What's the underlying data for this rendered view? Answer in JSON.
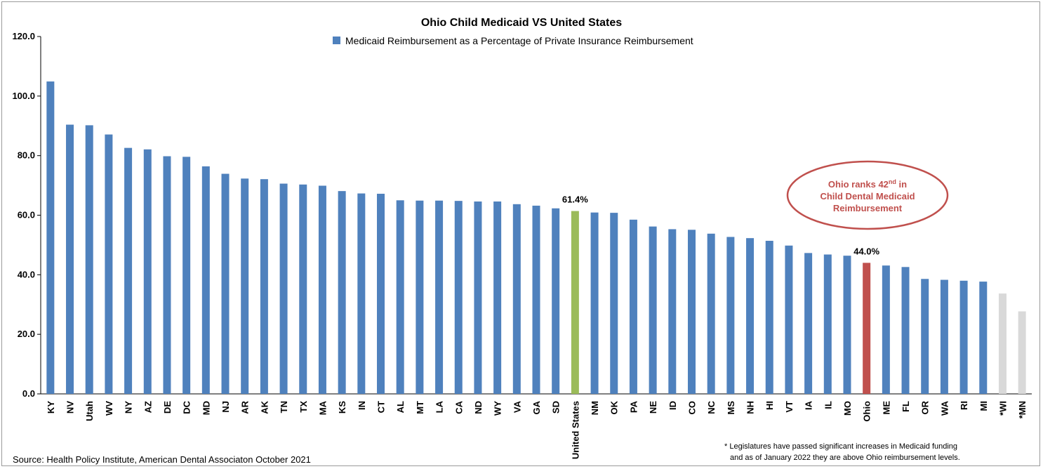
{
  "chart_data": {
    "type": "bar",
    "title": "Ohio Child Medicaid VS United States",
    "legend": "Medicaid Reimbursement as a Percentage of Private Insurance Reimbursement",
    "legend_position": "top-center",
    "ylim": [
      0,
      120
    ],
    "yticks": [
      "0.0",
      "20.0",
      "40.0",
      "60.0",
      "80.0",
      "100.0",
      "120.0"
    ],
    "grid": false,
    "categories": [
      "KY",
      "NV",
      "Utah",
      "WV",
      "NY",
      "AZ",
      "DE",
      "DC",
      "MD",
      "NJ",
      "AR",
      "AK",
      "TN",
      "TX",
      "MA",
      "KS",
      "IN",
      "CT",
      "AL",
      "MT",
      "LA",
      "CA",
      "ND",
      "WY",
      "VA",
      "GA",
      "SD",
      "United States",
      "NM",
      "OK",
      "PA",
      "NE",
      "ID",
      "CO",
      "NC",
      "MS",
      "NH",
      "HI",
      "VT",
      "IA",
      "IL",
      "MO",
      "Ohio",
      "ME",
      "FL",
      "OR",
      "WA",
      "RI",
      "MI",
      "*WI",
      "*MN"
    ],
    "values": [
      104.9,
      90.4,
      90.2,
      87.1,
      82.6,
      82.1,
      79.8,
      79.6,
      76.4,
      73.9,
      72.3,
      72.1,
      70.6,
      70.3,
      69.9,
      68.1,
      67.3,
      67.2,
      65.0,
      64.9,
      64.9,
      64.8,
      64.6,
      64.6,
      63.7,
      63.2,
      62.3,
      61.4,
      60.9,
      60.8,
      58.5,
      56.2,
      55.3,
      55.1,
      53.8,
      52.7,
      52.3,
      51.4,
      49.8,
      47.3,
      46.8,
      46.4,
      44.0,
      43.1,
      42.6,
      38.6,
      38.3,
      38.0,
      37.7,
      33.7,
      27.7
    ],
    "colors": {
      "default": "#4f81bd",
      "United States": "#9bbb59",
      "Ohio": "#c0504d",
      "*WI": "#d9d9d9",
      "*MN": "#d9d9d9"
    },
    "data_labels": [
      {
        "category": "United States",
        "text": "61.4%"
      },
      {
        "category": "Ohio",
        "text": "44.0%"
      }
    ],
    "callout": {
      "line1_pre": "Ohio ranks 42",
      "line1_sup": "nd",
      "line1_post": " in",
      "line2": "Child Dental Medicaid",
      "line3": "Reimbursement",
      "color": "#c0504d"
    }
  },
  "source": "Source: Health Policy Institute, American Dental Associaton October 2021",
  "footnote": {
    "line1": "* Legislatures have passed significant increases in Medicaid funding",
    "line2": "and as of January 2022 they are above Ohio reimbursement levels."
  }
}
